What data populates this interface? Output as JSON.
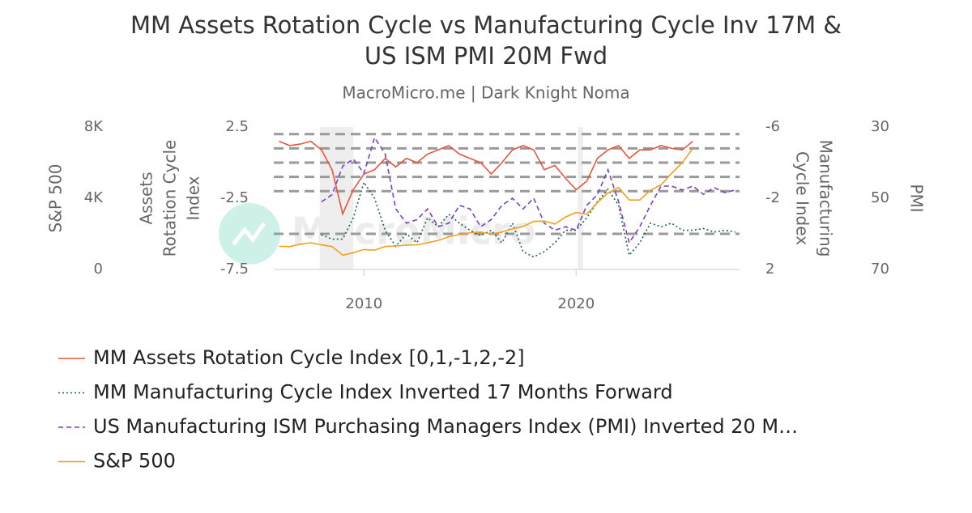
{
  "chart_data": {
    "type": "line",
    "title": [
      "MM Assets Rotation Cycle vs Manufacturing Cycle Inv 17M &",
      "US ISM PMI 20M Fwd"
    ],
    "subtitle": "MacroMicro.me | Dark Knight Noma",
    "watermark": "MacroMicro",
    "x": [
      2006,
      2006.5,
      2007,
      2007.5,
      2008,
      2008.5,
      2009,
      2009.5,
      2010,
      2010.5,
      2011,
      2011.5,
      2012,
      2012.5,
      2013,
      2013.5,
      2014,
      2014.5,
      2015,
      2015.5,
      2016,
      2016.5,
      2017,
      2017.5,
      2018,
      2018.5,
      2019,
      2019.5,
      2020,
      2020.5,
      2021,
      2021.5,
      2022,
      2022.5,
      2023,
      2023.5,
      2024,
      2024.5,
      2025,
      2025.5,
      2026,
      2026.5,
      2027,
      2027.5
    ],
    "xlim": [
      2005.75,
      2027.7
    ],
    "xticks": [
      2010,
      2020
    ],
    "shaded": [
      [
        2007.92,
        2009.5
      ],
      [
        2020.08,
        2020.33
      ]
    ],
    "ylabel": [
      "Assets",
      "Rotation Cycle",
      "Index"
    ],
    "ylim": [
      -7.5,
      2.5
    ],
    "yticks": [
      -7.5,
      -2.5,
      2.5
    ],
    "hlines": [
      2,
      1,
      0,
      -1,
      -2
    ],
    "y2label": [
      "Manufacturing",
      "Cycle Index"
    ],
    "y2lim": [
      2,
      -6
    ],
    "y2ticks": [
      -6,
      -2,
      2
    ],
    "y2hlines": [
      0
    ],
    "y3label": [
      "S&P 500"
    ],
    "y3lim": [
      0,
      8000
    ],
    "y3ticks": [
      0,
      {
        "value": 4000,
        "label": "4K"
      },
      {
        "value": 8000,
        "label": "8K"
      }
    ],
    "y4label": [
      "PMI"
    ],
    "y4lim": [
      70,
      30
    ],
    "y4ticks": [
      30,
      50,
      70
    ],
    "series": [
      {
        "name": "MM Assets Rotation Cycle Index [0,1,-1,2,-2]",
        "color": "#e8553e",
        "style": "solid",
        "axis": "y",
        "values": [
          1.5,
          1.2,
          1.3,
          1.5,
          0.9,
          -0.5,
          -3.6,
          -1.9,
          -0.8,
          -0.5,
          0.3,
          -0.3,
          0.3,
          0,
          0.6,
          0.9,
          1.2,
          0.6,
          0.3,
          0,
          -0.8,
          0,
          0.9,
          1.2,
          0.9,
          -0.5,
          -0.2,
          -1.1,
          -1.9,
          -1.3,
          0.3,
          0.9,
          1.2,
          0.3,
          0.9,
          0.9,
          1.2,
          1.0,
          0.9,
          1.5,
          null,
          null,
          null,
          null
        ]
      },
      {
        "name": "MM Manufacturing Cycle Index Inverted 17 Months Forward",
        "color": "#1a5e4a",
        "style": "dot",
        "axis": "y2",
        "values": [
          null,
          null,
          null,
          null,
          0.05,
          0.3,
          0.3,
          -0.9,
          -2.9,
          -2.0,
          -0.2,
          0.7,
          0.0,
          0.5,
          -0.9,
          -0.4,
          -1.1,
          -0.6,
          -0.2,
          0.1,
          -0.2,
          0.5,
          -0.6,
          1.0,
          1.3,
          1.0,
          0.5,
          -0.2,
          -0.2,
          -0.9,
          -1.8,
          -2.5,
          -1.6,
          1.2,
          0.5,
          -0.6,
          -0.4,
          -0.6,
          -0.2,
          -0.2,
          -0.3,
          -0.1,
          -0.2,
          -0.1
        ]
      },
      {
        "name": "US Manufacturing ISM Purchasing Managers Index (PMI) Inverted 20 M…",
        "color": "#7b3fc4",
        "style": "dash",
        "axis": "y4",
        "values": [
          null,
          null,
          null,
          null,
          51,
          49,
          41,
          39,
          43,
          33,
          37.5,
          53,
          57,
          56,
          53,
          58,
          57,
          52,
          53,
          58,
          56,
          52,
          50,
          53,
          50,
          57,
          59,
          58,
          59,
          52,
          49,
          42,
          51,
          62.5,
          58,
          52,
          46.6,
          46.6,
          47.7,
          46.6,
          48.9,
          47,
          48.4,
          47.7
        ]
      },
      {
        "name": "S&P 500",
        "color": "#f0a020",
        "style": "solid",
        "axis": "y3",
        "values": [
          1300,
          1280,
          1420,
          1500,
          1380,
          1280,
          800,
          940,
          1120,
          1080,
          1290,
          1320,
          1370,
          1380,
          1500,
          1630,
          1840,
          1960,
          2060,
          2100,
          1990,
          2100,
          2280,
          2420,
          2700,
          2720,
          2550,
          2950,
          3200,
          3100,
          3750,
          4300,
          4600,
          3900,
          3900,
          4450,
          4750,
          5400,
          6000,
          6800,
          null,
          null,
          null,
          null
        ]
      }
    ]
  }
}
